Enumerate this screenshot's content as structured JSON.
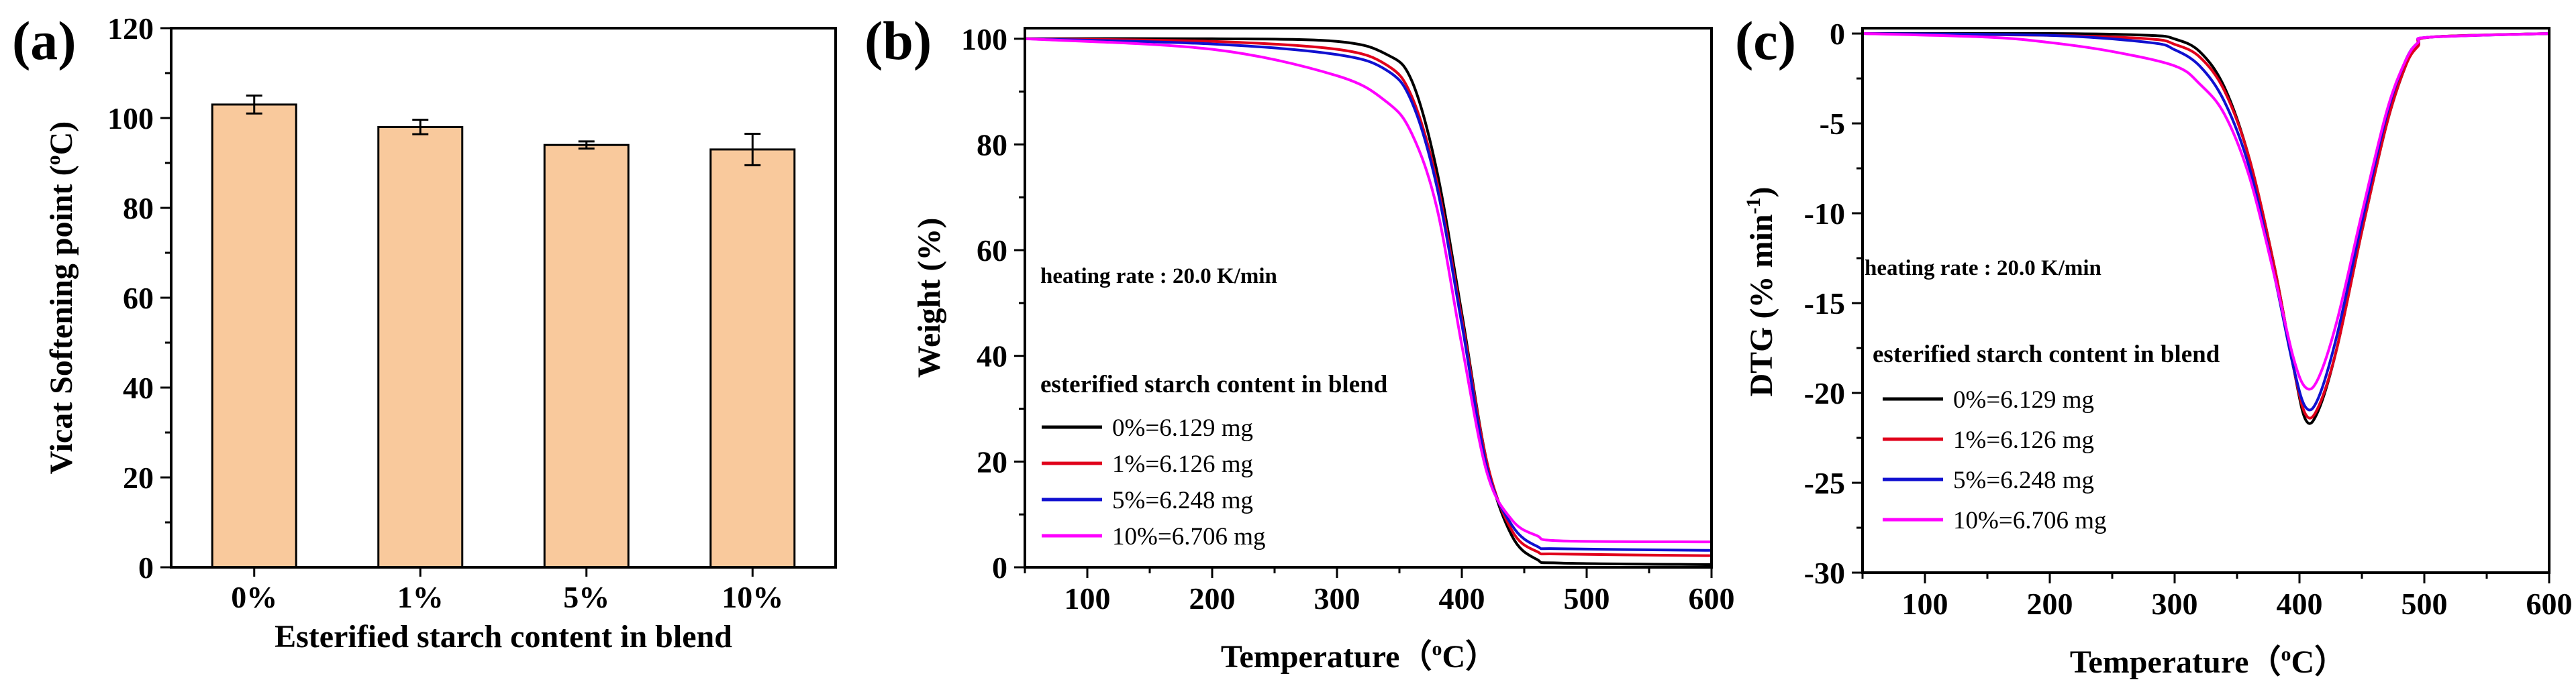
{
  "chart_data": [
    {
      "panel_label": "(a)",
      "type": "bar",
      "categories": [
        "0%",
        "1%",
        "5%",
        "10%"
      ],
      "values": [
        103,
        98,
        94,
        93
      ],
      "errors": [
        2,
        1.6,
        0.8,
        3.5
      ],
      "xlabel": "Esterified starch content in blend",
      "ylabel_prefix": "Vicat Softening point (",
      "ylabel_super": "o",
      "ylabel_suffix": "C)",
      "ylim": [
        0,
        120
      ],
      "yticks": [
        0,
        20,
        40,
        60,
        80,
        100,
        120
      ],
      "bar_color": "#F9C99C"
    },
    {
      "panel_label": "(b)",
      "type": "line",
      "xlabel_prefix": "Temperature（",
      "xlabel_super": "o",
      "xlabel_suffix": "C）",
      "ylabel": "Weight (%)",
      "xlim": [
        50,
        600
      ],
      "ylim": [
        0,
        102
      ],
      "xticks": [
        100,
        200,
        300,
        400,
        500,
        600
      ],
      "yticks": [
        0,
        20,
        40,
        60,
        80,
        100
      ],
      "annotation": "heating rate : 20.0 K/min",
      "legend_title": "esterified starch content in blend",
      "series": [
        {
          "name": "0%=6.129 mg",
          "color": "#000000",
          "x": [
            50,
            200,
            300,
            340,
            360,
            380,
            400,
            420,
            440,
            460,
            480,
            600
          ],
          "y": [
            100,
            100,
            99.5,
            97,
            92,
            75,
            48,
            20,
            6,
            1.5,
            0.8,
            0.5
          ]
        },
        {
          "name": "1%=6.126 mg",
          "color": "#E0001B",
          "x": [
            50,
            200,
            300,
            340,
            360,
            380,
            400,
            420,
            440,
            460,
            480,
            600
          ],
          "y": [
            100,
            99.5,
            98,
            95,
            89,
            73,
            47,
            20,
            7,
            3,
            2.5,
            2.2
          ]
        },
        {
          "name": "5%=6.248 mg",
          "color": "#1010D0",
          "x": [
            50,
            200,
            300,
            340,
            360,
            380,
            400,
            420,
            440,
            460,
            480,
            600
          ],
          "y": [
            100,
            99,
            97,
            94,
            88,
            72,
            46,
            19,
            8,
            4,
            3.5,
            3.2
          ]
        },
        {
          "name": "10%=6.706 mg",
          "color": "#FF00FF",
          "x": [
            50,
            200,
            300,
            340,
            360,
            380,
            400,
            420,
            440,
            460,
            480,
            600
          ],
          "y": [
            100,
            98,
            93,
            88,
            82,
            68,
            42,
            18,
            9,
            6,
            5,
            4.8
          ]
        }
      ]
    },
    {
      "panel_label": "(c)",
      "type": "line",
      "xlabel_prefix": "Temperature（",
      "xlabel_super": "o",
      "xlabel_suffix": "C）",
      "ylabel_prefix": "DTG (% min",
      "ylabel_super": "-1",
      "ylabel_suffix": ")",
      "xlim": [
        50,
        600
      ],
      "ylim": [
        -30,
        0.3
      ],
      "xticks": [
        100,
        200,
        300,
        400,
        500,
        600
      ],
      "yticks": [
        0,
        -5,
        -10,
        -15,
        -20,
        -25,
        -30
      ],
      "annotation": "heating rate : 20.0 K/min",
      "legend_title": "esterified starch content in blend",
      "series": [
        {
          "name": "0%=6.129 mg",
          "color": "#000000",
          "x": [
            50,
            200,
            280,
            300,
            320,
            340,
            360,
            380,
            395,
            405,
            415,
            430,
            450,
            470,
            485,
            495,
            505,
            600
          ],
          "y": [
            0,
            0,
            -0.1,
            -0.3,
            -1,
            -3,
            -7,
            -13,
            -18.5,
            -21.5,
            -21,
            -17.5,
            -11,
            -5,
            -1.8,
            -0.6,
            -0.2,
            0
          ]
        },
        {
          "name": "1%=6.126 mg",
          "color": "#E0001B",
          "x": [
            50,
            200,
            280,
            300,
            320,
            340,
            360,
            380,
            395,
            405,
            415,
            430,
            450,
            470,
            485,
            495,
            505,
            600
          ],
          "y": [
            0,
            -0.1,
            -0.3,
            -0.6,
            -1.3,
            -3.2,
            -7,
            -13,
            -18.5,
            -21.2,
            -20.8,
            -17.5,
            -11,
            -5,
            -1.8,
            -0.7,
            -0.2,
            0
          ]
        },
        {
          "name": "5%=6.248 mg",
          "color": "#1010D0",
          "x": [
            50,
            200,
            280,
            300,
            320,
            340,
            360,
            380,
            395,
            405,
            415,
            430,
            450,
            470,
            485,
            495,
            505,
            600
          ],
          "y": [
            0,
            -0.1,
            -0.5,
            -0.9,
            -1.8,
            -3.8,
            -7.5,
            -13.5,
            -18.5,
            -20.8,
            -20.3,
            -16.8,
            -10.5,
            -4.5,
            -1.5,
            -0.5,
            -0.2,
            0
          ]
        },
        {
          "name": "10%=6.706 mg",
          "color": "#FF00FF",
          "x": [
            50,
            150,
            200,
            250,
            300,
            320,
            340,
            360,
            380,
            395,
            405,
            415,
            430,
            450,
            470,
            485,
            495,
            505,
            600
          ],
          "y": [
            0,
            -0.2,
            -0.5,
            -1,
            -1.8,
            -2.8,
            -4.5,
            -8,
            -13.5,
            -18,
            -19.7,
            -19.2,
            -16,
            -10,
            -4.3,
            -1.5,
            -0.5,
            -0.2,
            0
          ]
        }
      ]
    }
  ]
}
